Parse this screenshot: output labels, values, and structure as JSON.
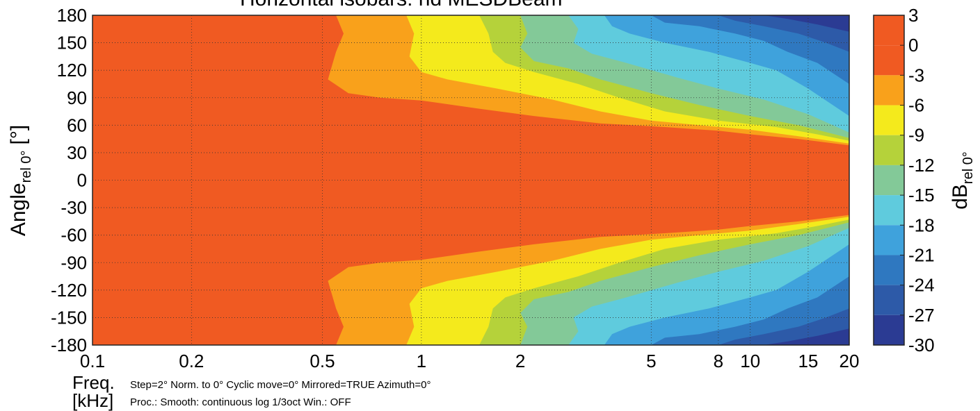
{
  "chart_data": {
    "type": "heatmap",
    "title": "Horizontal isobars: hd MESDBeam",
    "xlabel": "Freq.",
    "xunit": "[kHz]",
    "ylabel": "Angle",
    "ylabel_sub": "rel 0°",
    "ylabel_unit": "[°]",
    "cbar_label": "dB",
    "cbar_label_sub": "rel 0°",
    "x_scale": "log",
    "xlim": [
      0.1,
      20
    ],
    "ylim": [
      -180,
      180
    ],
    "x_ticks": [
      {
        "v": 0.1,
        "label": "0.1"
      },
      {
        "v": 0.2,
        "label": "0.2"
      },
      {
        "v": 0.5,
        "label": "0.5"
      },
      {
        "v": 1,
        "label": "1"
      },
      {
        "v": 2,
        "label": "2"
      },
      {
        "v": 5,
        "label": "5"
      },
      {
        "v": 8,
        "label": "8"
      },
      {
        "v": 10,
        "label": "10"
      },
      {
        "v": 15,
        "label": "15"
      },
      {
        "v": 20,
        "label": "20"
      }
    ],
    "y_ticks": [
      "180",
      "150",
      "120",
      "90",
      "60",
      "30",
      "0",
      "-30",
      "-60",
      "-90",
      "-120",
      "-150",
      "-180"
    ],
    "grid": true,
    "levels": [
      {
        "label": "3",
        "from": 0,
        "to": 3,
        "color": "#f05a22"
      },
      {
        "label": "0",
        "from": -3,
        "to": 0,
        "color": "#f05a22"
      },
      {
        "label": "-3",
        "from": -6,
        "to": -3,
        "color": "#f9a11b"
      },
      {
        "label": "-6",
        "from": -9,
        "to": -6,
        "color": "#f4ea1c"
      },
      {
        "label": "-9",
        "from": -12,
        "to": -9,
        "color": "#b5d23a"
      },
      {
        "label": "-12",
        "from": -15,
        "to": -12,
        "color": "#83c998"
      },
      {
        "label": "-15",
        "from": -18,
        "to": -15,
        "color": "#5fcbdd"
      },
      {
        "label": "-18",
        "from": -21,
        "to": -18,
        "color": "#3fa2dc"
      },
      {
        "label": "-21",
        "from": -24,
        "to": -21,
        "color": "#2f78c0"
      },
      {
        "label": "-24",
        "from": -27,
        "to": -24,
        "color": "#2d5aa8"
      },
      {
        "label": "-27",
        "from": -30,
        "to": -27,
        "color": "#2b3b93"
      }
    ],
    "cbar_ticks": [
      "3",
      "0",
      "-3",
      "-6",
      "-9",
      "-12",
      "-15",
      "-18",
      "-21",
      "-24",
      "-27",
      "-30"
    ],
    "cbar_range": [
      -30,
      3
    ],
    "contours": [
      {
        "level_label": "-3",
        "color": "#f9a11b",
        "upper": [
          [
            0.55,
            180
          ],
          [
            0.58,
            160
          ],
          [
            0.55,
            140
          ],
          [
            0.52,
            110
          ],
          [
            0.6,
            95
          ],
          [
            0.75,
            90
          ],
          [
            1.0,
            87
          ],
          [
            1.5,
            78
          ],
          [
            2.2,
            70
          ],
          [
            3.5,
            62
          ],
          [
            5.5,
            58
          ],
          [
            8,
            54
          ],
          [
            10,
            50
          ],
          [
            14,
            45
          ],
          [
            20,
            38
          ]
        ]
      },
      {
        "level_label": "-6",
        "color": "#f4ea1c",
        "upper": [
          [
            0.9,
            180
          ],
          [
            0.95,
            160
          ],
          [
            0.92,
            135
          ],
          [
            1.0,
            118
          ],
          [
            1.2,
            110
          ],
          [
            1.7,
            100
          ],
          [
            2.5,
            88
          ],
          [
            3.5,
            75
          ],
          [
            5,
            65
          ],
          [
            7,
            60
          ],
          [
            10,
            55
          ],
          [
            14,
            48
          ],
          [
            20,
            40
          ]
        ]
      },
      {
        "level_label": "-9",
        "color": "#b5d23a",
        "upper": [
          [
            1.5,
            180
          ],
          [
            1.6,
            160
          ],
          [
            1.65,
            140
          ],
          [
            1.8,
            128
          ],
          [
            2.2,
            118
          ],
          [
            3,
            105
          ],
          [
            4,
            90
          ],
          [
            5.5,
            75
          ],
          [
            8,
            65
          ],
          [
            12,
            58
          ],
          [
            16,
            50
          ],
          [
            20,
            43
          ]
        ]
      },
      {
        "level_label": "-12",
        "color": "#83c998",
        "upper": [
          [
            2.0,
            180
          ],
          [
            2.1,
            160
          ],
          [
            2.0,
            145
          ],
          [
            2.2,
            130
          ],
          [
            2.8,
            122
          ],
          [
            3.5,
            110
          ],
          [
            5,
            95
          ],
          [
            7,
            82
          ],
          [
            10,
            70
          ],
          [
            14,
            60
          ],
          [
            20,
            46
          ]
        ]
      },
      {
        "level_label": "-15",
        "color": "#5fcbdd",
        "upper": [
          [
            2.8,
            180
          ],
          [
            3.0,
            165
          ],
          [
            2.9,
            150
          ],
          [
            3.3,
            138
          ],
          [
            4.2,
            128
          ],
          [
            6,
            112
          ],
          [
            8,
            100
          ],
          [
            11,
            88
          ],
          [
            15,
            72
          ],
          [
            20,
            52
          ]
        ]
      },
      {
        "level_label": "-18",
        "color": "#3fa2dc",
        "upper": [
          [
            3.6,
            180
          ],
          [
            3.8,
            168
          ],
          [
            4.3,
            160
          ],
          [
            5.5,
            150
          ],
          [
            7.5,
            140
          ],
          [
            10,
            128
          ],
          [
            12,
            120
          ],
          [
            15,
            100
          ],
          [
            20,
            70
          ]
        ]
      },
      {
        "level_label": "-21",
        "color": "#2f78c0",
        "upper": [
          [
            5,
            180
          ],
          [
            5.5,
            172
          ],
          [
            7,
            168
          ],
          [
            9,
            160
          ],
          [
            11,
            152
          ],
          [
            13,
            140
          ],
          [
            16,
            128
          ],
          [
            20,
            105
          ]
        ]
      },
      {
        "level_label": "-24",
        "color": "#2d5aa8",
        "upper": [
          [
            8,
            180
          ],
          [
            9,
            174
          ],
          [
            11,
            168
          ],
          [
            14,
            160
          ],
          [
            17,
            150
          ],
          [
            20,
            140
          ]
        ]
      },
      {
        "level_label": "-27",
        "color": "#2b3b93",
        "upper": [
          [
            11,
            180
          ],
          [
            13,
            176
          ],
          [
            16,
            170
          ],
          [
            20,
            162
          ]
        ]
      }
    ]
  },
  "footer": {
    "line1": "Step=2°   Norm. to 0°   Cyclic move=0°   Mirrored=TRUE   Azimuth=0°",
    "line2": "Proc.: Smooth: continuous log 1/3oct    Win.: OFF"
  }
}
